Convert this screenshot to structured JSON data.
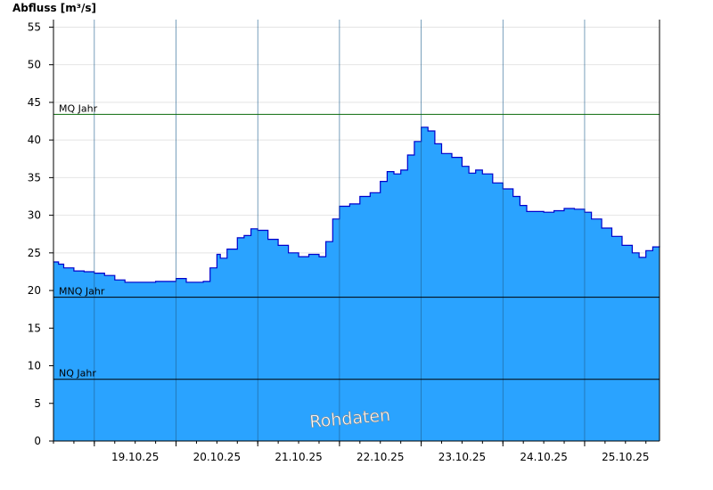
{
  "chart_data": {
    "type": "area",
    "ylabel": "Abfluss [m³/s]",
    "ylim": [
      0,
      56
    ],
    "yticks": [
      0,
      5,
      10,
      15,
      20,
      25,
      30,
      35,
      40,
      45,
      50,
      55
    ],
    "x_range": [
      "2025-10-18T12:00",
      "2025-10-25T22:00"
    ],
    "day_boundaries": [
      "2025-10-19T00:00",
      "2025-10-20T00:00",
      "2025-10-21T00:00",
      "2025-10-22T00:00",
      "2025-10-23T00:00",
      "2025-10-24T00:00",
      "2025-10-25T00:00"
    ],
    "xticks": [
      {
        "label": "19.10.25",
        "at": "2025-10-19T12:00"
      },
      {
        "label": "20.10.25",
        "at": "2025-10-20T12:00"
      },
      {
        "label": "21.10.25",
        "at": "2025-10-21T12:00"
      },
      {
        "label": "22.10.25",
        "at": "2025-10-22T12:00"
      },
      {
        "label": "23.10.25",
        "at": "2025-10-23T12:00"
      },
      {
        "label": "24.10.25",
        "at": "2025-10-24T12:00"
      },
      {
        "label": "25.10.25",
        "at": "2025-10-25T12:00"
      }
    ],
    "series": [
      {
        "color": "#2aa3ff",
        "line_color": "#0000cc",
        "points": [
          [
            "2025-10-18T12:00",
            23.8
          ],
          [
            "2025-10-18T13:30",
            23.5
          ],
          [
            "2025-10-18T15:00",
            23.0
          ],
          [
            "2025-10-18T18:00",
            22.6
          ],
          [
            "2025-10-18T21:00",
            22.5
          ],
          [
            "2025-10-19T00:00",
            22.3
          ],
          [
            "2025-10-19T03:00",
            22.0
          ],
          [
            "2025-10-19T06:00",
            21.4
          ],
          [
            "2025-10-19T09:00",
            21.1
          ],
          [
            "2025-10-19T12:00",
            21.1
          ],
          [
            "2025-10-19T18:00",
            21.2
          ],
          [
            "2025-10-20T00:00",
            21.6
          ],
          [
            "2025-10-20T03:00",
            21.1
          ],
          [
            "2025-10-20T06:00",
            21.1
          ],
          [
            "2025-10-20T08:00",
            21.2
          ],
          [
            "2025-10-20T10:00",
            23.0
          ],
          [
            "2025-10-20T12:00",
            24.8
          ],
          [
            "2025-10-20T13:00",
            24.3
          ],
          [
            "2025-10-20T15:00",
            25.5
          ],
          [
            "2025-10-20T18:00",
            27.0
          ],
          [
            "2025-10-20T20:00",
            27.3
          ],
          [
            "2025-10-20T22:00",
            28.2
          ],
          [
            "2025-10-21T00:00",
            28.0
          ],
          [
            "2025-10-21T03:00",
            26.8
          ],
          [
            "2025-10-21T06:00",
            26.0
          ],
          [
            "2025-10-21T09:00",
            25.0
          ],
          [
            "2025-10-21T12:00",
            24.5
          ],
          [
            "2025-10-21T15:00",
            24.8
          ],
          [
            "2025-10-21T18:00",
            24.5
          ],
          [
            "2025-10-21T20:00",
            26.5
          ],
          [
            "2025-10-21T22:00",
            29.5
          ],
          [
            "2025-10-22T00:00",
            31.2
          ],
          [
            "2025-10-22T03:00",
            31.5
          ],
          [
            "2025-10-22T06:00",
            32.5
          ],
          [
            "2025-10-22T09:00",
            33.0
          ],
          [
            "2025-10-22T12:00",
            34.5
          ],
          [
            "2025-10-22T14:00",
            35.8
          ],
          [
            "2025-10-22T16:00",
            35.5
          ],
          [
            "2025-10-22T18:00",
            36.0
          ],
          [
            "2025-10-22T20:00",
            38.0
          ],
          [
            "2025-10-22T22:00",
            39.8
          ],
          [
            "2025-10-23T00:00",
            41.7
          ],
          [
            "2025-10-23T02:00",
            41.2
          ],
          [
            "2025-10-23T04:00",
            39.5
          ],
          [
            "2025-10-23T06:00",
            38.2
          ],
          [
            "2025-10-23T09:00",
            37.7
          ],
          [
            "2025-10-23T12:00",
            36.5
          ],
          [
            "2025-10-23T14:00",
            35.6
          ],
          [
            "2025-10-23T16:00",
            36.0
          ],
          [
            "2025-10-23T18:00",
            35.5
          ],
          [
            "2025-10-23T21:00",
            34.3
          ],
          [
            "2025-10-24T00:00",
            33.5
          ],
          [
            "2025-10-24T03:00",
            32.5
          ],
          [
            "2025-10-24T05:00",
            31.3
          ],
          [
            "2025-10-24T07:00",
            30.5
          ],
          [
            "2025-10-24T12:00",
            30.4
          ],
          [
            "2025-10-24T15:00",
            30.6
          ],
          [
            "2025-10-24T18:00",
            30.9
          ],
          [
            "2025-10-24T21:00",
            30.8
          ],
          [
            "2025-10-25T00:00",
            30.4
          ],
          [
            "2025-10-25T02:00",
            29.5
          ],
          [
            "2025-10-25T05:00",
            28.3
          ],
          [
            "2025-10-25T08:00",
            27.2
          ],
          [
            "2025-10-25T11:00",
            26.0
          ],
          [
            "2025-10-25T14:00",
            25.0
          ],
          [
            "2025-10-25T16:00",
            24.4
          ],
          [
            "2025-10-25T18:00",
            25.3
          ],
          [
            "2025-10-25T20:00",
            25.8
          ],
          [
            "2025-10-25T22:00",
            25.9
          ]
        ]
      }
    ],
    "reference_lines": [
      {
        "label": "MQ Jahr",
        "value": 43.4,
        "color": "#0a6a0a"
      },
      {
        "label": "MNQ Jahr",
        "value": 19.1,
        "color": "#000000"
      },
      {
        "label": "NQ Jahr",
        "value": 8.2,
        "color": "#000000"
      }
    ],
    "watermark": "Rohdaten",
    "grid": true
  }
}
